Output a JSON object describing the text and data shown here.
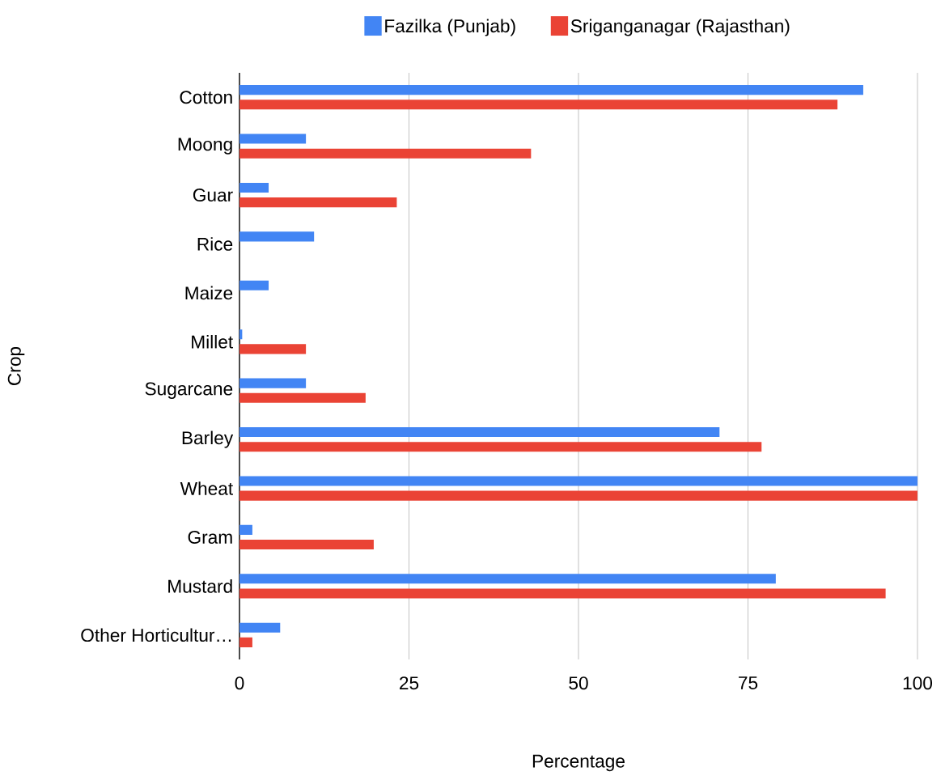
{
  "chart_data": {
    "type": "bar",
    "orientation": "horizontal",
    "xlabel": "Percentage",
    "ylabel": "Crop",
    "categories": [
      "Cotton",
      "Moong",
      "Guar",
      "Rice",
      "Maize",
      "Millet",
      "Sugarcane",
      "Barley",
      "Wheat",
      "Gram",
      "Mustard",
      "Other Horticultur…"
    ],
    "series": [
      {
        "name": "Fazilka (Punjab)",
        "color": "#4285f4",
        "values": [
          92,
          9.8,
          4.3,
          11,
          4.3,
          0.4,
          9.8,
          70.8,
          100,
          1.9,
          79.1,
          6
        ]
      },
      {
        "name": "Sriganganagar (Rajasthan)",
        "color": "#ea4335",
        "values": [
          88.2,
          43,
          23.2,
          null,
          null,
          9.8,
          18.6,
          77,
          100,
          19.8,
          95.3,
          1.9
        ]
      }
    ],
    "xlim": [
      0,
      100
    ],
    "xticks": [
      0,
      25,
      50,
      75,
      100
    ],
    "grid": "x",
    "legend": "top"
  }
}
